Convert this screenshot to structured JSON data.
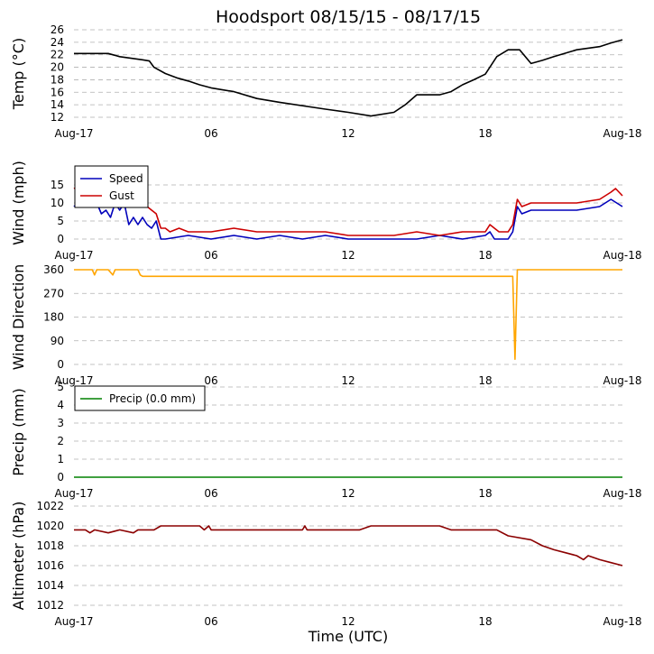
{
  "title": "Hoodsport 08/15/15 - 08/17/15",
  "xlabel": "Time (UTC)",
  "x_ticks": [
    "Aug-17",
    "06",
    "12",
    "18",
    "Aug-18"
  ],
  "chart_data": [
    {
      "type": "line",
      "id": "temp",
      "ylabel": "Temp (°C)",
      "ylim": [
        12,
        26
      ],
      "yticks": [
        12,
        14,
        16,
        18,
        20,
        22,
        24,
        26
      ],
      "grid": true,
      "legend": "",
      "series": [
        {
          "color": "#000000",
          "hours": [
            0,
            1.5,
            2,
            3,
            3.3,
            3.5,
            4,
            4.5,
            5,
            5.5,
            6,
            7,
            8,
            9,
            11,
            12,
            13,
            14,
            14.5,
            15,
            16,
            16.5,
            17,
            17.5,
            18,
            18.5,
            19,
            19.5,
            20,
            20.5,
            21,
            22,
            23,
            23.5,
            24
          ],
          "values": [
            22.2,
            22.2,
            21.7,
            21.2,
            21.0,
            20.0,
            19.0,
            18.3,
            17.8,
            17.2,
            16.7,
            16.1,
            15.0,
            14.4,
            13.3,
            12.8,
            12.2,
            12.8,
            14.0,
            15.6,
            15.6,
            16.1,
            17.2,
            18.0,
            18.9,
            21.7,
            22.8,
            22.8,
            20.6,
            21.1,
            21.7,
            22.8,
            23.3,
            23.9,
            24.4
          ]
        }
      ]
    },
    {
      "type": "line",
      "id": "wind",
      "ylabel": "Wind (mph)",
      "ylim": [
        0,
        20
      ],
      "yticks": [
        0,
        5,
        10,
        15
      ],
      "grid": true,
      "legend": "top-left",
      "series": [
        {
          "name": "Speed",
          "color": "#0000bb",
          "hours": [
            0,
            0.3,
            0.5,
            0.8,
            1,
            1.2,
            1.4,
            1.6,
            1.8,
            2,
            2.2,
            2.4,
            2.6,
            2.8,
            3,
            3.2,
            3.4,
            3.6,
            3.8,
            4,
            5,
            6,
            7,
            8,
            9,
            10,
            11,
            12,
            13,
            14,
            15,
            16,
            17,
            18,
            18.2,
            18.4,
            18.6,
            19,
            19.2,
            19.4,
            19.6,
            20,
            21,
            22,
            23,
            23.5,
            24
          ],
          "values": [
            9,
            11,
            9,
            11,
            10,
            7,
            8,
            6,
            10,
            8,
            10,
            4,
            6,
            4,
            6,
            4,
            3,
            5,
            0,
            0,
            1,
            0,
            1,
            0,
            1,
            0,
            1,
            0,
            0,
            0,
            0,
            1,
            0,
            1,
            2,
            0,
            0,
            0,
            2,
            9,
            7,
            8,
            8,
            8,
            9,
            11,
            9
          ]
        },
        {
          "name": "Gust",
          "color": "#cc0000",
          "hours": [
            0,
            0.3,
            0.5,
            1,
            1.2,
            1.5,
            2,
            2.3,
            2.6,
            2.9,
            3.2,
            3.4,
            3.6,
            3.8,
            4,
            4.2,
            4.6,
            5,
            6,
            7,
            8,
            9,
            10,
            11,
            12,
            13,
            14,
            15,
            16,
            17,
            18,
            18.2,
            18.4,
            18.6,
            19,
            19.2,
            19.4,
            19.6,
            20,
            21,
            22,
            23,
            23.5,
            23.7,
            24
          ],
          "values": [
            14,
            15,
            11,
            14,
            11,
            12,
            11,
            14,
            11,
            9,
            9,
            8,
            7,
            3,
            3,
            2,
            3,
            2,
            2,
            3,
            2,
            2,
            2,
            2,
            1,
            1,
            1,
            2,
            1,
            2,
            2,
            4,
            3,
            2,
            2,
            4,
            11,
            9,
            10,
            10,
            10,
            11,
            13,
            14,
            12
          ]
        }
      ]
    },
    {
      "type": "line",
      "id": "direction",
      "ylabel": "Wind Direction",
      "ylim": [
        0,
        360
      ],
      "yticks": [
        0,
        90,
        180,
        270,
        360
      ],
      "grid": true,
      "legend": "",
      "series": [
        {
          "color": "#ffa500",
          "hours": [
            0,
            0.8,
            0.9,
            1.0,
            1.5,
            1.7,
            1.8,
            1.9,
            2.0,
            2.8,
            2.9,
            3.0,
            5.9,
            6.0,
            7.4,
            7.5,
            7.9,
            8.0,
            11.5,
            11.6,
            12.5,
            12.7,
            14.0,
            14.1,
            18.0,
            18.1,
            19.0,
            19.2,
            19.3,
            19.4,
            24
          ],
          "values": [
            360,
            360,
            340,
            360,
            360,
            340,
            360,
            360,
            360,
            360,
            340,
            335,
            335,
            335,
            335,
            335,
            335,
            335,
            335,
            335,
            335,
            335,
            335,
            335,
            335,
            335,
            335,
            335,
            20,
            360,
            360
          ]
        }
      ]
    },
    {
      "type": "line",
      "id": "precip",
      "ylabel": "Precip (mm)",
      "ylim": [
        0,
        5
      ],
      "yticks": [
        0,
        1,
        2,
        3,
        4,
        5
      ],
      "grid": true,
      "legend": "top-left",
      "series": [
        {
          "name": "Precip (0.0 mm)",
          "color": "#008000",
          "hours": [
            0,
            24
          ],
          "values": [
            0,
            0
          ]
        }
      ]
    },
    {
      "type": "line",
      "id": "altimeter",
      "ylabel": "Altimeter (hPa)",
      "ylim": [
        1012,
        1022
      ],
      "yticks": [
        1012,
        1014,
        1016,
        1018,
        1020,
        1022
      ],
      "grid": true,
      "legend": "",
      "series": [
        {
          "color": "#8b0000",
          "hours": [
            0,
            0.5,
            0.7,
            0.9,
            1.5,
            2,
            2.6,
            2.8,
            3,
            3.5,
            3.8,
            5.5,
            5.7,
            5.9,
            6,
            10,
            10.1,
            10.2,
            12.5,
            13,
            16,
            16.5,
            18.5,
            19,
            20,
            20.5,
            21,
            21.5,
            22,
            22.3,
            22.5,
            23,
            23.5,
            24
          ],
          "values": [
            1019.6,
            1019.6,
            1019.3,
            1019.6,
            1019.3,
            1019.6,
            1019.3,
            1019.6,
            1019.6,
            1019.6,
            1020.0,
            1020.0,
            1019.6,
            1020.0,
            1019.6,
            1019.6,
            1020.0,
            1019.6,
            1019.6,
            1020.0,
            1020.0,
            1019.6,
            1019.6,
            1019.0,
            1018.6,
            1018.0,
            1017.6,
            1017.3,
            1017.0,
            1016.6,
            1017.0,
            1016.6,
            1016.3,
            1016.0
          ]
        }
      ]
    }
  ]
}
